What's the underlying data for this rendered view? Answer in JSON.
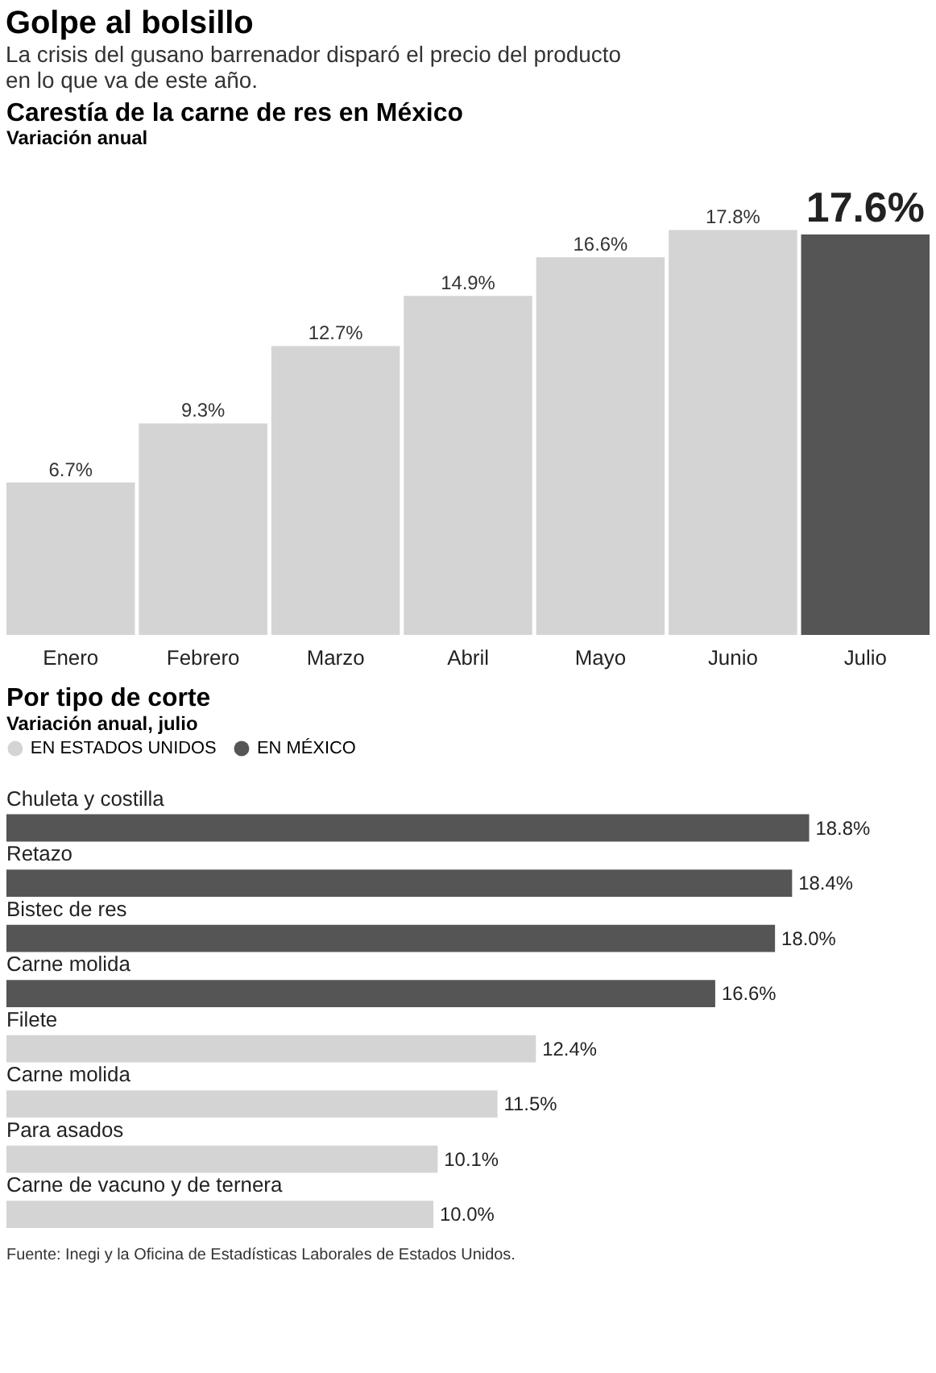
{
  "chart_data": [
    {
      "type": "bar",
      "title": "Carestía de la carne de res en México",
      "subtitle": "Variación anual",
      "annotations": [
        "Golpe al bolsillo",
        "La crisis del gusano barrenador disparó el precio del producto en lo que va de este año."
      ],
      "categories": [
        "Enero",
        "Febrero",
        "Marzo",
        "Abril",
        "Mayo",
        "Junio",
        "Julio"
      ],
      "values": [
        6.7,
        9.3,
        12.7,
        14.9,
        16.6,
        17.8,
        17.6
      ],
      "value_labels": [
        "6.7%",
        "9.3%",
        "12.7%",
        "14.9%",
        "16.6%",
        "17.8%",
        "17.6%"
      ],
      "colors": [
        "#d4d4d4",
        "#d4d4d4",
        "#d4d4d4",
        "#d4d4d4",
        "#d4d4d4",
        "#d4d4d4",
        "#555555"
      ],
      "tick_labels": "x"
    },
    {
      "type": "bar",
      "orientation": "horizontal",
      "title": "Por tipo de corte",
      "subtitle": "Variación anual, julio",
      "annotations": [
        "Fuente: Inegi y la Oficina de Estadísticas Laborales de Estados Unidos."
      ],
      "categories": [
        "Chuleta y costilla",
        "Retazo",
        "Bistec de res",
        "Carne molida",
        "Filete",
        "Carne molida",
        "Para asados",
        "Carne de vacuno y de ternera"
      ],
      "legend": "top",
      "series": [
        {
          "name": "EN ESTADOS UNIDOS",
          "color": "#d4d4d4",
          "values": [
            null,
            null,
            null,
            null,
            12.4,
            11.5,
            10.1,
            10.0
          ],
          "value_labels": [
            null,
            null,
            null,
            null,
            "12.4%",
            "11.5%",
            "10.1%",
            "10.0%"
          ]
        },
        {
          "name": "EN MÉXICO",
          "color": "#555555",
          "values": [
            18.8,
            18.4,
            18.0,
            16.6,
            null,
            null,
            null,
            null
          ],
          "value_labels": [
            "18.8%",
            "18.4%",
            "18.0%",
            "16.6%",
            null,
            null,
            null,
            null
          ]
        }
      ]
    }
  ]
}
